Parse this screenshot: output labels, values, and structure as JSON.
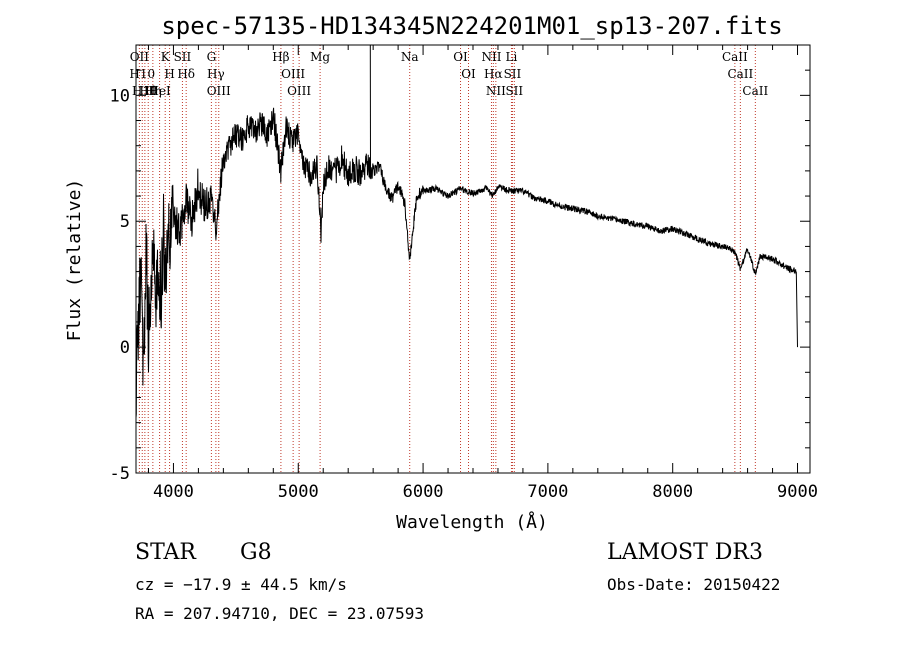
{
  "chart_data": {
    "type": "line",
    "title": "spec-57135-HD134345N224201M01_sp13-207.fits",
    "xlabel": "Wavelength (Å)",
    "ylabel": "Flux (relative)",
    "xlim": [
      3700,
      9100
    ],
    "ylim": [
      -5,
      12
    ],
    "xticks": [
      4000,
      5000,
      6000,
      7000,
      8000,
      9000
    ],
    "yticks": [
      -5,
      0,
      5,
      10
    ],
    "spectrum": {
      "name": "flux",
      "x": [
        3700,
        3720,
        3740,
        3760,
        3780,
        3800,
        3820,
        3840,
        3860,
        3880,
        3900,
        3920,
        3940,
        3960,
        3980,
        4000,
        4050,
        4100,
        4150,
        4200,
        4250,
        4300,
        4340,
        4400,
        4450,
        4500,
        4550,
        4600,
        4650,
        4700,
        4750,
        4800,
        4861,
        4900,
        4950,
        5000,
        5050,
        5100,
        5150,
        5183,
        5200,
        5250,
        5300,
        5350,
        5400,
        5450,
        5500,
        5550,
        5600,
        5650,
        5700,
        5750,
        5800,
        5850,
        5893,
        5950,
        6000,
        6100,
        6200,
        6300,
        6400,
        6500,
        6563,
        6600,
        6700,
        6800,
        6900,
        7000,
        7100,
        7200,
        7300,
        7400,
        7500,
        7600,
        7700,
        7800,
        7900,
        8000,
        8100,
        8200,
        8300,
        8400,
        8498,
        8542,
        8600,
        8662,
        8700,
        8800,
        8900,
        8990,
        9000
      ],
      "y": [
        -1.5,
        1.0,
        3.0,
        -1.0,
        4.0,
        0.5,
        2.5,
        4.0,
        2.0,
        3.5,
        2.0,
        4.5,
        2.5,
        4.0,
        5.0,
        5.3,
        4.5,
        6.0,
        5.0,
        6.5,
        5.5,
        6.0,
        4.8,
        7.5,
        8.0,
        8.5,
        8.2,
        8.8,
        8.5,
        9.0,
        8.3,
        9.2,
        7.0,
        8.8,
        8.0,
        8.5,
        7.2,
        6.8,
        7.3,
        4.5,
        6.5,
        7.2,
        7.0,
        7.5,
        6.8,
        7.1,
        6.9,
        7.3,
        7.0,
        7.2,
        6.3,
        5.9,
        6.4,
        5.8,
        3.5,
        6.0,
        6.2,
        6.3,
        6.0,
        6.3,
        6.1,
        6.3,
        6.0,
        6.4,
        6.2,
        6.2,
        5.9,
        5.8,
        5.6,
        5.5,
        5.4,
        5.2,
        5.1,
        5.0,
        4.9,
        4.8,
        4.6,
        4.7,
        4.5,
        4.3,
        4.1,
        4.0,
        3.8,
        3.1,
        3.9,
        2.9,
        3.6,
        3.5,
        3.2,
        3.0,
        0.0
      ]
    },
    "line_markers": [
      {
        "wave": 3727,
        "label": "OII"
      },
      {
        "wave": 3750,
        "label": "H10"
      },
      {
        "wave": 3771,
        "label": "H11"
      },
      {
        "wave": 3798,
        "label": "Hθ"
      },
      {
        "wave": 3835,
        "label": "Hη"
      },
      {
        "wave": 3889,
        "label": "HeI"
      },
      {
        "wave": 3934,
        "label": "K"
      },
      {
        "wave": 3969,
        "label": "H"
      },
      {
        "wave": 4072,
        "label": "SII"
      },
      {
        "wave": 4102,
        "label": "Hδ"
      },
      {
        "wave": 4304,
        "label": "G"
      },
      {
        "wave": 4340,
        "label": "Hγ"
      },
      {
        "wave": 4363,
        "label": "OIII"
      },
      {
        "wave": 4861,
        "label": "Hβ"
      },
      {
        "wave": 4959,
        "label": "OIII"
      },
      {
        "wave": 5007,
        "label": "OIII"
      },
      {
        "wave": 5175,
        "label": "Mg"
      },
      {
        "wave": 5893,
        "label": "Na"
      },
      {
        "wave": 6300,
        "label": "OI"
      },
      {
        "wave": 6364,
        "label": "OI"
      },
      {
        "wave": 6548,
        "label": "NII"
      },
      {
        "wave": 6563,
        "label": "Hα"
      },
      {
        "wave": 6583,
        "label": "NII"
      },
      {
        "wave": 6708,
        "label": "Li"
      },
      {
        "wave": 6716,
        "label": "SII"
      },
      {
        "wave": 6731,
        "label": "SII"
      },
      {
        "wave": 8498,
        "label": "CaII"
      },
      {
        "wave": 8542,
        "label": "CaII"
      },
      {
        "wave": 8662,
        "label": "CaII"
      }
    ]
  },
  "info": {
    "object_class": "STAR",
    "subclass": "G8",
    "survey": "LAMOST DR3",
    "redshift": "cz = −17.9 ± 44.5 km/s",
    "obs_date": "Obs-Date: 20150422",
    "coords": "RA = 207.94710, DEC =  23.07593"
  },
  "colors": {
    "spectrum": "#000000",
    "marker": "#c0392b",
    "axes": "#000000"
  }
}
